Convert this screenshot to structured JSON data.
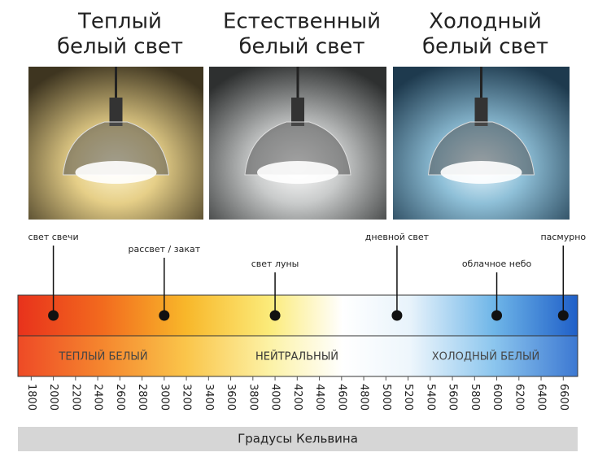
{
  "panels": [
    {
      "lines": [
        "Теплый",
        "белый свет"
      ]
    },
    {
      "lines": [
        "Естественный",
        "белый свет"
      ]
    },
    {
      "lines": [
        "Холодный",
        "белый свет"
      ]
    }
  ],
  "scale": {
    "xlim": [
      1680,
      6730
    ],
    "ticks": [
      1800,
      2000,
      2200,
      2400,
      2600,
      2800,
      3000,
      3200,
      3400,
      3600,
      3800,
      4000,
      4200,
      4400,
      4600,
      4800,
      5000,
      5200,
      5400,
      5600,
      5800,
      6000,
      6200,
      6400,
      6600
    ],
    "markers": [
      {
        "label": "свет свечи",
        "value": 2000
      },
      {
        "label": "рассвет / закат",
        "value": 3000
      },
      {
        "label": "свет луны",
        "value": 4000
      },
      {
        "label": "дневной свет",
        "value": 5100
      },
      {
        "label": "облачное небо",
        "value": 6000
      },
      {
        "label": "пасмурно",
        "value": 6600
      }
    ],
    "zones": [
      "ТЕПЛЫЙ БЕЛЫЙ",
      "НЕЙТРАЛЬНЫЙ",
      "ХОЛОДНЫЙ БЕЛЫЙ"
    ],
    "axis_label": "Градусы Кельвина"
  }
}
